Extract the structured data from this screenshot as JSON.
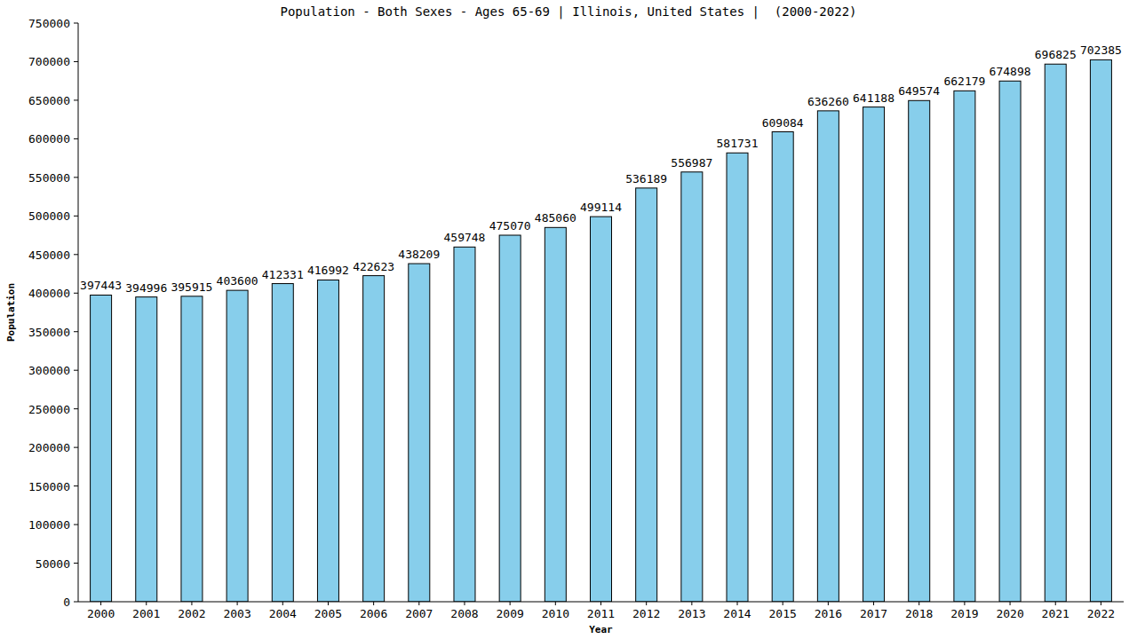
{
  "chart_data": {
    "type": "bar",
    "title": "Population - Both Sexes - Ages 65-69 | Illinois, United States |  (2000-2022)",
    "x_label": "Year",
    "y_label": "Population",
    "categories": [
      "2000",
      "2001",
      "2002",
      "2003",
      "2004",
      "2005",
      "2006",
      "2007",
      "2008",
      "2009",
      "2010",
      "2011",
      "2012",
      "2013",
      "2014",
      "2015",
      "2016",
      "2017",
      "2018",
      "2019",
      "2020",
      "2021",
      "2022"
    ],
    "values": [
      397443,
      394996,
      395915,
      403600,
      412331,
      416992,
      422623,
      438209,
      459748,
      475070,
      485060,
      499114,
      536189,
      556987,
      581731,
      609084,
      636260,
      641188,
      649574,
      662179,
      674898,
      696825,
      702385
    ],
    "color": "#87ceeb",
    "ylim": [
      0,
      750000
    ],
    "yticks": [
      0,
      50000,
      100000,
      150000,
      200000,
      250000,
      300000,
      350000,
      400000,
      450000,
      500000,
      550000,
      600000,
      650000,
      700000,
      750000
    ],
    "grid": false,
    "data_labels": true
  }
}
